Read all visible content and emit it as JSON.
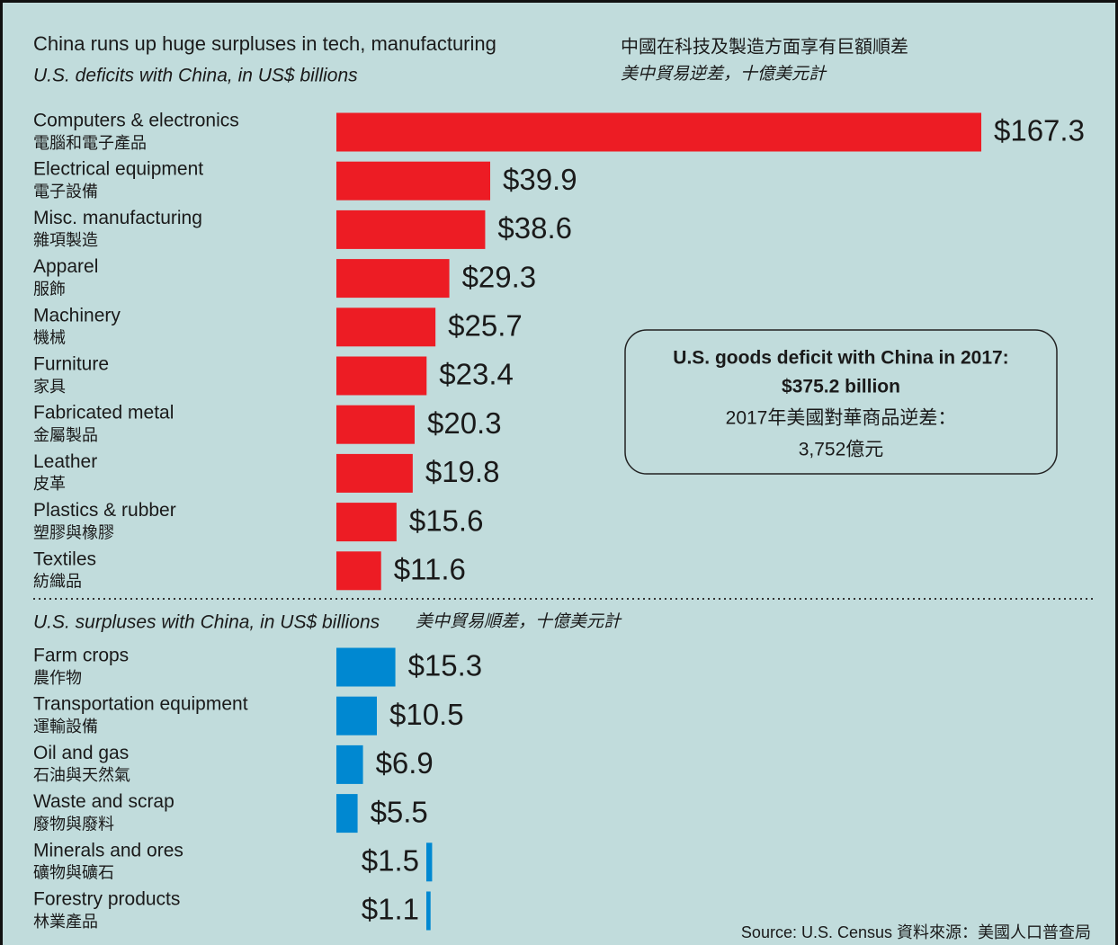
{
  "title": "China runs up huge surpluses in tech, manufacturing",
  "title_zh": "中國在科技及製造方面享有巨額順差",
  "annotation": [
    "U.S. goods deficit with China in 2017:",
    "$375.2 billion",
    "2017年美國對華商品逆差：",
    "3,752億元"
  ],
  "source": "Source: U.S. Census 資料來源：美國人口普查局",
  "chart_data": [
    {
      "type": "hbar",
      "subtitle": "U.S. deficits with China, in US$ billions",
      "subtitle_zh": "美中貿易逆差，十億美元計",
      "categories": [
        "Computers & electronics",
        "Electrical equipment",
        "Misc. manufacturing",
        "Apparel",
        "Machinery",
        "Furniture",
        "Fabricated metal",
        "Leather",
        "Plastics & rubber",
        "Textiles"
      ],
      "categories_zh": [
        "電腦和電子產品",
        "電子設備",
        "雜項製造",
        "服飾",
        "機械",
        "家具",
        "金屬製品",
        "皮革",
        "塑膠與橡膠",
        "紡織品"
      ],
      "values": [
        167.3,
        39.9,
        38.6,
        29.3,
        25.7,
        23.4,
        20.3,
        19.8,
        15.6,
        11.6
      ],
      "value_labels": [
        "$167.3",
        "$39.9",
        "$38.6",
        "$29.3",
        "$25.7",
        "$23.4",
        "$20.3",
        "$19.8",
        "$15.6",
        "$11.6"
      ],
      "color": "#ed1c24"
    },
    {
      "type": "hbar",
      "subtitle": "U.S. surpluses with China, in US$ billions",
      "subtitle_zh": "美中貿易順差，十億美元計",
      "categories": [
        "Farm crops",
        "Transportation equipment",
        "Oil and gas",
        "Waste and scrap",
        "Minerals and ores",
        "Forestry products"
      ],
      "categories_zh": [
        "農作物",
        "運輸設備",
        "石油與天然氣",
        "廢物與廢料",
        "礦物與礦石",
        "林業產品"
      ],
      "values": [
        15.3,
        10.5,
        6.9,
        5.5,
        1.5,
        1.1
      ],
      "value_labels": [
        "$15.3",
        "$10.5",
        "$6.9",
        "$5.5",
        "$1.5",
        "$1.1"
      ],
      "color": "#0088d1"
    }
  ]
}
